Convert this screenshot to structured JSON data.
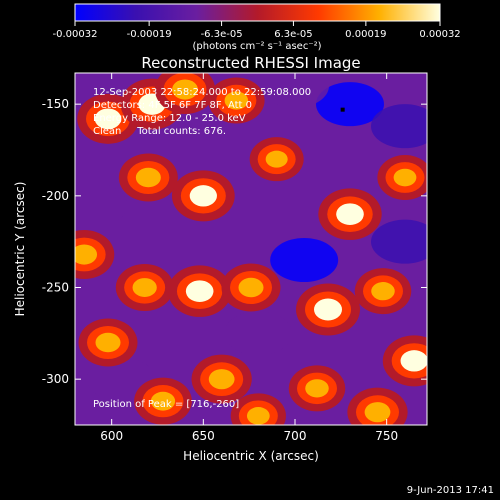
{
  "colorbar": {
    "ticks": [
      "-0.00032",
      "-0.00019",
      "-6.3e-05",
      "6.3e-05",
      "0.00019",
      "0.00032"
    ],
    "tick_values": [
      -0.00032,
      -0.00019,
      -6.3e-05,
      6.3e-05,
      0.00019,
      0.00032
    ],
    "range": [
      -0.00032,
      0.00032
    ],
    "unit_label": "(photons cm⁻² s⁻¹ asec⁻²)",
    "colors": [
      "#0000ff",
      "#3a10b0",
      "#6a1ea0",
      "#b31a2a",
      "#ff3a00",
      "#ffb000",
      "#ffffe0"
    ]
  },
  "chart_data": {
    "type": "heatmap",
    "title": "Reconstructed RHESSI Image",
    "xlabel": "Heliocentric X (arcsec)",
    "ylabel": "Heliocentric Y (arcsec)",
    "xlim": [
      580,
      772
    ],
    "ylim": [
      -325,
      -133
    ],
    "x_ticks": [
      600,
      650,
      700,
      750
    ],
    "y_ticks": [
      -150,
      -200,
      -250,
      -300
    ],
    "x_tick_labels": [
      "600",
      "650",
      "700",
      "750"
    ],
    "y_tick_labels": [
      "-150",
      "-200",
      "-250",
      "-300"
    ],
    "peak": {
      "x": 716,
      "y": -260
    },
    "marker": {
      "x": 726,
      "y": -153
    },
    "sources": [
      {
        "x": 598,
        "y": -158,
        "v": 0.00028
      },
      {
        "x": 622,
        "y": -150,
        "v": 0.0003
      },
      {
        "x": 640,
        "y": -142,
        "v": 0.00026
      },
      {
        "x": 668,
        "y": -148,
        "v": 0.0002
      },
      {
        "x": 620,
        "y": -190,
        "v": 0.00024
      },
      {
        "x": 650,
        "y": -200,
        "v": 0.0003
      },
      {
        "x": 585,
        "y": -232,
        "v": 0.00026
      },
      {
        "x": 618,
        "y": -250,
        "v": 0.00022
      },
      {
        "x": 648,
        "y": -252,
        "v": 0.00031
      },
      {
        "x": 676,
        "y": -250,
        "v": 0.00024
      },
      {
        "x": 730,
        "y": -210,
        "v": 0.00031
      },
      {
        "x": 760,
        "y": -190,
        "v": 0.00018
      },
      {
        "x": 718,
        "y": -262,
        "v": 0.00032
      },
      {
        "x": 748,
        "y": -252,
        "v": 0.0002
      },
      {
        "x": 598,
        "y": -280,
        "v": 0.00024
      },
      {
        "x": 628,
        "y": -312,
        "v": 0.00022
      },
      {
        "x": 660,
        "y": -300,
        "v": 0.00026
      },
      {
        "x": 680,
        "y": -320,
        "v": 0.00018
      },
      {
        "x": 712,
        "y": -305,
        "v": 0.0002
      },
      {
        "x": 745,
        "y": -318,
        "v": 0.00026
      },
      {
        "x": 765,
        "y": -290,
        "v": 0.0003
      },
      {
        "x": 690,
        "y": -180,
        "v": 0.00016
      },
      {
        "x": 730,
        "y": -150,
        "v": -0.0003
      },
      {
        "x": 705,
        "y": -235,
        "v": -0.00032
      },
      {
        "x": 760,
        "y": -162,
        "v": -0.0002
      },
      {
        "x": 760,
        "y": -225,
        "v": -0.00018
      },
      {
        "x": 605,
        "y": -300,
        "v": -0.00014
      },
      {
        "x": 680,
        "y": -275,
        "v": -0.00016
      },
      {
        "x": 590,
        "y": -205,
        "v": -0.00012
      },
      {
        "x": 700,
        "y": -140,
        "v": -0.00016
      }
    ]
  },
  "annotations": {
    "time_range": "12-Sep-2003 22:58:24.000 to 22:59:08.000",
    "detectors": "Detectors: 4F 5F 6F 7F 8F, Att 0",
    "energy": "Energy Range: 12.0 - 25.0 keV",
    "clean": "Clean     Total counts: 676.",
    "peak_text": "Position of Peak = [716,-260]"
  },
  "footer": {
    "timestamp": "9-Jun-2013 17:41"
  }
}
